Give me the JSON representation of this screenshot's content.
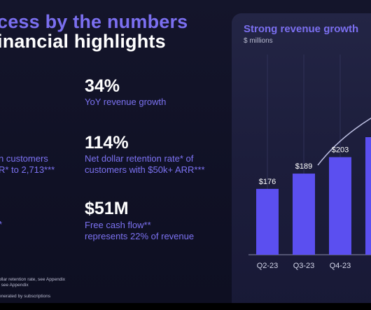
{
  "slide": {
    "title_line1": "cess by the numbers",
    "title_line2": "inancial highlights",
    "stats": [
      {
        "value": "34%",
        "desc": [
          "YoY revenue growth"
        ]
      },
      {
        "value": "114%",
        "desc": [
          "Net dollar retention rate* of",
          "customers with $50k+ ARR***"
        ]
      },
      {
        "value": "$51M",
        "desc": [
          "Free cash flow**",
          "represents 22% of revenue"
        ]
      }
    ],
    "left_fragments": [
      "n customers",
      "R* to 2,713***",
      "*"
    ],
    "footnotes": [
      "ollar retention rate, see Appendix",
      ", see Appendix",
      "enerated by subscriptions"
    ]
  },
  "chart_data": {
    "type": "bar",
    "title": "Strong revenue growth",
    "unit_label": "$ millions",
    "categories": [
      "Q2-23",
      "Q3-23",
      "Q4-23",
      "Q"
    ],
    "values": [
      176,
      189,
      203,
      220
    ],
    "value_labels": [
      "$176",
      "$189",
      "$203",
      ""
    ],
    "bar_color": "#5b4ff0",
    "trend_color": "#d9dcff"
  }
}
